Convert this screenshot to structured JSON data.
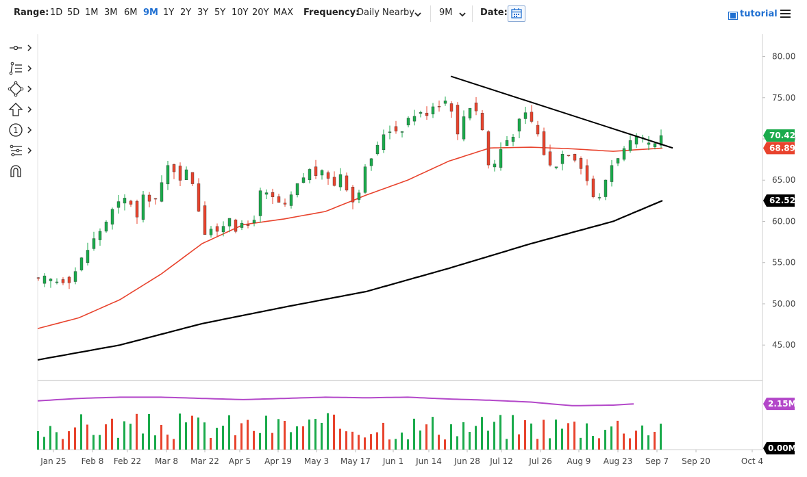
{
  "toolbar": {
    "range_label": "Range:",
    "ranges": [
      "1D",
      "5D",
      "1M",
      "3M",
      "6M",
      "9M",
      "1Y",
      "2Y",
      "3Y",
      "5Y",
      "10Y",
      "20Y",
      "MAX"
    ],
    "active_range": "9M",
    "frequency_label": "Frequency:",
    "frequency_value": "Daily Nearby",
    "period_value": "9M",
    "date_label": "Date:",
    "tutorial_label": "tutorial"
  },
  "left_tools": [
    "crosshair-tool-icon",
    "trend-tools-icon",
    "shape-tools-icon",
    "arrow-tools-icon",
    "annotation-tools-icon",
    "fibonacci-tools-icon",
    "magnet-icon"
  ],
  "colors": {
    "up": "#1aaa4b",
    "down": "#e8432d",
    "ma50": "#e8432d",
    "ma200": "#000000",
    "volume_ma": "#b347c9",
    "accent": "#1f6fd1"
  },
  "chart_data": {
    "type": "candlestick",
    "x_tick_labels": [
      "Jan 25",
      "Feb 8",
      "Feb 22",
      "Mar 8",
      "Mar 22",
      "Apr 5",
      "Apr 19",
      "May 3",
      "May 17",
      "Jun 1",
      "Jun 14",
      "Jun 28",
      "Jul 12",
      "Jul 26",
      "Aug 9",
      "Aug 23",
      "Sep 7",
      "Sep 20",
      "Oct 4"
    ],
    "y_tick_labels": [
      "80.00",
      "75.00",
      "70.00",
      "65.00",
      "60.00",
      "55.00",
      "50.00",
      "45.00"
    ],
    "ylim": [
      40.7,
      82.7
    ],
    "price_close_path": [
      [
        0,
        52.8
      ],
      [
        4,
        53.1
      ],
      [
        8,
        52.7
      ],
      [
        12,
        52.9
      ],
      [
        16,
        53.0
      ],
      [
        20,
        55.0
      ],
      [
        24,
        56.6
      ],
      [
        28,
        58.2
      ],
      [
        32,
        59.6
      ],
      [
        36,
        61.3
      ],
      [
        40,
        62.4
      ],
      [
        44,
        62.9
      ],
      [
        48,
        60.4
      ],
      [
        52,
        63.6
      ],
      [
        56,
        62.1
      ],
      [
        60,
        64.4
      ],
      [
        64,
        67.4
      ],
      [
        68,
        65.2
      ],
      [
        72,
        66.0
      ],
      [
        76,
        64.4
      ],
      [
        80,
        58.6
      ],
      [
        84,
        59.2
      ],
      [
        88,
        58.1
      ],
      [
        92,
        61.1
      ],
      [
        96,
        59.2
      ],
      [
        100,
        59.4
      ],
      [
        104,
        59.6
      ],
      [
        108,
        63.4
      ],
      [
        112,
        63.1
      ],
      [
        116,
        62.4
      ],
      [
        120,
        61.7
      ],
      [
        124,
        63.5
      ],
      [
        128,
        65.1
      ],
      [
        132,
        66.2
      ],
      [
        136,
        65.6
      ],
      [
        140,
        65.9
      ],
      [
        144,
        64.3
      ],
      [
        148,
        66.4
      ],
      [
        152,
        62.0
      ],
      [
        156,
        63.9
      ],
      [
        160,
        67.1
      ],
      [
        164,
        68.4
      ],
      [
        168,
        70.7
      ],
      [
        172,
        71.3
      ],
      [
        176,
        70.9
      ],
      [
        180,
        72.5
      ],
      [
        184,
        73.1
      ],
      [
        188,
        72.9
      ],
      [
        192,
        74.1
      ],
      [
        196,
        74.4
      ],
      [
        200,
        74.9
      ],
      [
        204,
        70.4
      ],
      [
        208,
        73.6
      ],
      [
        212,
        74.4
      ],
      [
        216,
        71.1
      ],
      [
        220,
        65.5
      ],
      [
        224,
        68.4
      ],
      [
        228,
        69.9
      ],
      [
        232,
        70.9
      ],
      [
        236,
        73.2
      ],
      [
        240,
        72.1
      ],
      [
        244,
        70.0
      ],
      [
        248,
        66.6
      ],
      [
        252,
        67.0
      ],
      [
        256,
        68.6
      ],
      [
        260,
        68.1
      ],
      [
        264,
        66.8
      ],
      [
        268,
        64.4
      ],
      [
        272,
        61.9
      ],
      [
        276,
        65.1
      ],
      [
        280,
        67.5
      ],
      [
        284,
        68.4
      ],
      [
        288,
        69.4
      ],
      [
        292,
        70.1
      ],
      [
        296,
        69.4
      ],
      [
        300,
        69.1
      ],
      [
        304,
        70.42
      ]
    ],
    "last_price": "70.42",
    "ma50": {
      "value_label": "68.89",
      "path": [
        [
          0,
          47.0
        ],
        [
          20,
          48.3
        ],
        [
          40,
          50.5
        ],
        [
          60,
          53.6
        ],
        [
          80,
          57.3
        ],
        [
          100,
          59.6
        ],
        [
          120,
          60.3
        ],
        [
          140,
          61.2
        ],
        [
          160,
          63.2
        ],
        [
          180,
          65.0
        ],
        [
          200,
          67.3
        ],
        [
          220,
          68.9
        ],
        [
          240,
          69.0
        ],
        [
          260,
          68.8
        ],
        [
          280,
          68.5
        ],
        [
          304,
          68.89
        ]
      ]
    },
    "ma200": {
      "value_label": "62.52",
      "path": [
        [
          0,
          43.2
        ],
        [
          40,
          45.0
        ],
        [
          80,
          47.6
        ],
        [
          120,
          49.6
        ],
        [
          160,
          51.5
        ],
        [
          200,
          54.3
        ],
        [
          240,
          57.3
        ],
        [
          280,
          60.0
        ],
        [
          304,
          62.52
        ]
      ]
    },
    "resistance_line": [
      [
        201,
        77.6
      ],
      [
        309,
        68.9
      ]
    ],
    "volume": {
      "last_label": "2.15M",
      "axis_min_label": "0.00M",
      "ma_path": [
        [
          0,
          0.8
        ],
        [
          20,
          0.84
        ],
        [
          40,
          0.86
        ],
        [
          60,
          0.86
        ],
        [
          80,
          0.84
        ],
        [
          100,
          0.82
        ],
        [
          120,
          0.84
        ],
        [
          140,
          0.86
        ],
        [
          160,
          0.85
        ],
        [
          180,
          0.86
        ],
        [
          200,
          0.83
        ],
        [
          220,
          0.81
        ],
        [
          240,
          0.78
        ],
        [
          260,
          0.72
        ],
        [
          280,
          0.73
        ],
        [
          290,
          0.75
        ]
      ],
      "seed": 17
    }
  }
}
